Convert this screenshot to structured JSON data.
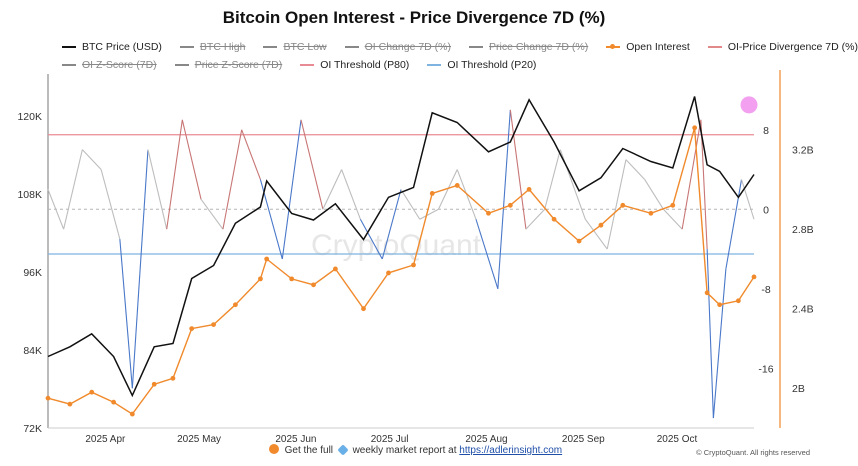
{
  "title": "Bitcoin Open Interest - Price Divergence 7D (%)",
  "legend": {
    "row1": [
      {
        "label": "BTC Price (USD)",
        "color": "#111111",
        "active": true,
        "marker": "line"
      },
      {
        "label": "BTC High",
        "color": "#888888",
        "active": false,
        "marker": "line"
      },
      {
        "label": "BTC Low",
        "color": "#888888",
        "active": false,
        "marker": "line"
      },
      {
        "label": "OI Change 7D (%)",
        "color": "#888888",
        "active": false,
        "marker": "line"
      },
      {
        "label": "Price Change 7D (%)",
        "color": "#888888",
        "active": false,
        "marker": "line"
      },
      {
        "label": "Open Interest",
        "color": "#f08a2c",
        "active": true,
        "marker": "dot"
      },
      {
        "label": "OI-Price Divergence 7D (%)",
        "color": "#e08a8a",
        "active": true,
        "marker": "line"
      }
    ],
    "row2": [
      {
        "label": "OI Z-Score (7D)",
        "color": "#888888",
        "active": false,
        "marker": "line"
      },
      {
        "label": "Price Z-Score (7D)",
        "color": "#888888",
        "active": false,
        "marker": "line"
      },
      {
        "label": "OI Threshold (P80)",
        "color": "#e88b95",
        "active": true,
        "marker": "line"
      },
      {
        "label": "OI Threshold (P20)",
        "color": "#7fb3e0",
        "active": true,
        "marker": "line"
      }
    ]
  },
  "watermark": "CryptoQuant",
  "footer": {
    "prefix": "Get the full",
    "middle": "weekly market report at",
    "link": "https://adlerinsight.com",
    "credit": "© CryptoQuant. All rights reserved"
  },
  "colors": {
    "price": "#111111",
    "open_interest": "#f08a2c",
    "divergence_above": "#c87575",
    "divergence_mid": "#bdbdbd",
    "divergence_below": "#4a78c9",
    "p80": "#e88b95",
    "p20": "#7fb3e0",
    "marker": "#f2a0ef"
  },
  "chart_data": {
    "type": "line",
    "title": "Bitcoin Open Interest - Price Divergence 7D (%)",
    "x_ticks": [
      "2025 Apr",
      "2025 May",
      "2025 Jun",
      "2025 Jul",
      "2025 Aug",
      "2025 Sep",
      "2025 Oct"
    ],
    "x_range": [
      "2025-03-13",
      "2025-10-25"
    ],
    "axes": {
      "price": {
        "ticks": [
          "120K",
          "108K",
          "96K",
          "84K",
          "72K"
        ],
        "range": [
          72000,
          124000
        ]
      },
      "divergence": {
        "ticks": [
          "8",
          "0",
          "-8",
          "-16"
        ],
        "range": [
          -22,
          12
        ]
      },
      "open_interest": {
        "ticks": [
          "3.2B",
          "2.8B",
          "2.4B",
          "2B"
        ],
        "range": [
          1.8,
          3.5
        ]
      }
    },
    "thresholds": {
      "p80": 7.5,
      "p20": -4.5
    },
    "series": [
      {
        "name": "BTC Price (USD)",
        "dates": [
          "2025-03-13",
          "2025-03-20",
          "2025-03-27",
          "2025-04-03",
          "2025-04-09",
          "2025-04-16",
          "2025-04-22",
          "2025-04-28",
          "2025-05-05",
          "2025-05-12",
          "2025-05-20",
          "2025-05-22",
          "2025-05-30",
          "2025-06-06",
          "2025-06-13",
          "2025-06-22",
          "2025-06-30",
          "2025-07-08",
          "2025-07-14",
          "2025-07-22",
          "2025-08-01",
          "2025-08-08",
          "2025-08-14",
          "2025-08-22",
          "2025-08-30",
          "2025-09-06",
          "2025-09-13",
          "2025-09-22",
          "2025-09-29",
          "2025-10-06",
          "2025-10-10",
          "2025-10-14",
          "2025-10-20",
          "2025-10-25"
        ],
        "values": [
          83000,
          84500,
          86500,
          83000,
          77000,
          84500,
          85000,
          95000,
          97000,
          103500,
          106000,
          110000,
          105000,
          104000,
          106500,
          101000,
          107500,
          109000,
          120500,
          119000,
          114500,
          116000,
          122500,
          116000,
          108500,
          110500,
          115000,
          113000,
          112000,
          123000,
          112500,
          111500,
          107500,
          111000
        ]
      },
      {
        "name": "Open Interest",
        "dates": [
          "2025-03-13",
          "2025-03-20",
          "2025-03-27",
          "2025-04-03",
          "2025-04-09",
          "2025-04-16",
          "2025-04-22",
          "2025-04-28",
          "2025-05-05",
          "2025-05-12",
          "2025-05-20",
          "2025-05-22",
          "2025-05-30",
          "2025-06-06",
          "2025-06-13",
          "2025-06-22",
          "2025-06-30",
          "2025-07-08",
          "2025-07-14",
          "2025-07-22",
          "2025-08-01",
          "2025-08-08",
          "2025-08-14",
          "2025-08-22",
          "2025-08-30",
          "2025-09-06",
          "2025-09-13",
          "2025-09-22",
          "2025-09-29",
          "2025-10-06",
          "2025-10-10",
          "2025-10-14",
          "2025-10-20",
          "2025-10-25"
        ],
        "values": [
          1.95,
          1.92,
          1.98,
          1.93,
          1.87,
          2.02,
          2.05,
          2.3,
          2.32,
          2.42,
          2.55,
          2.65,
          2.55,
          2.52,
          2.6,
          2.4,
          2.58,
          2.62,
          2.98,
          3.02,
          2.88,
          2.92,
          3.0,
          2.85,
          2.74,
          2.82,
          2.92,
          2.88,
          2.92,
          3.31,
          2.48,
          2.42,
          2.44,
          2.56
        ]
      },
      {
        "name": "OI-Price Divergence 7D (%)",
        "dates": [
          "2025-03-13",
          "2025-03-18",
          "2025-03-24",
          "2025-03-30",
          "2025-04-05",
          "2025-04-09",
          "2025-04-14",
          "2025-04-20",
          "2025-04-25",
          "2025-05-01",
          "2025-05-08",
          "2025-05-14",
          "2025-05-20",
          "2025-05-27",
          "2025-06-02",
          "2025-06-09",
          "2025-06-15",
          "2025-06-21",
          "2025-06-28",
          "2025-07-04",
          "2025-07-10",
          "2025-07-16",
          "2025-07-22",
          "2025-07-28",
          "2025-08-04",
          "2025-08-08",
          "2025-08-13",
          "2025-08-19",
          "2025-08-24",
          "2025-09-01",
          "2025-09-08",
          "2025-09-14",
          "2025-09-20",
          "2025-09-26",
          "2025-10-02",
          "2025-10-08",
          "2025-10-10",
          "2025-10-12",
          "2025-10-16",
          "2025-10-21",
          "2025-10-25"
        ],
        "values": [
          2,
          -2,
          6,
          4,
          -3,
          -18,
          6,
          -2,
          9,
          1,
          -2,
          8,
          3,
          -5,
          9,
          0,
          4,
          -1,
          -5,
          2,
          -1,
          0,
          4,
          -1,
          -8,
          10,
          -2,
          0,
          6,
          -1,
          -4,
          5,
          3,
          0,
          -2,
          9,
          -4,
          -21,
          -6,
          3,
          -1
        ]
      }
    ],
    "marker_value": 10.5
  }
}
